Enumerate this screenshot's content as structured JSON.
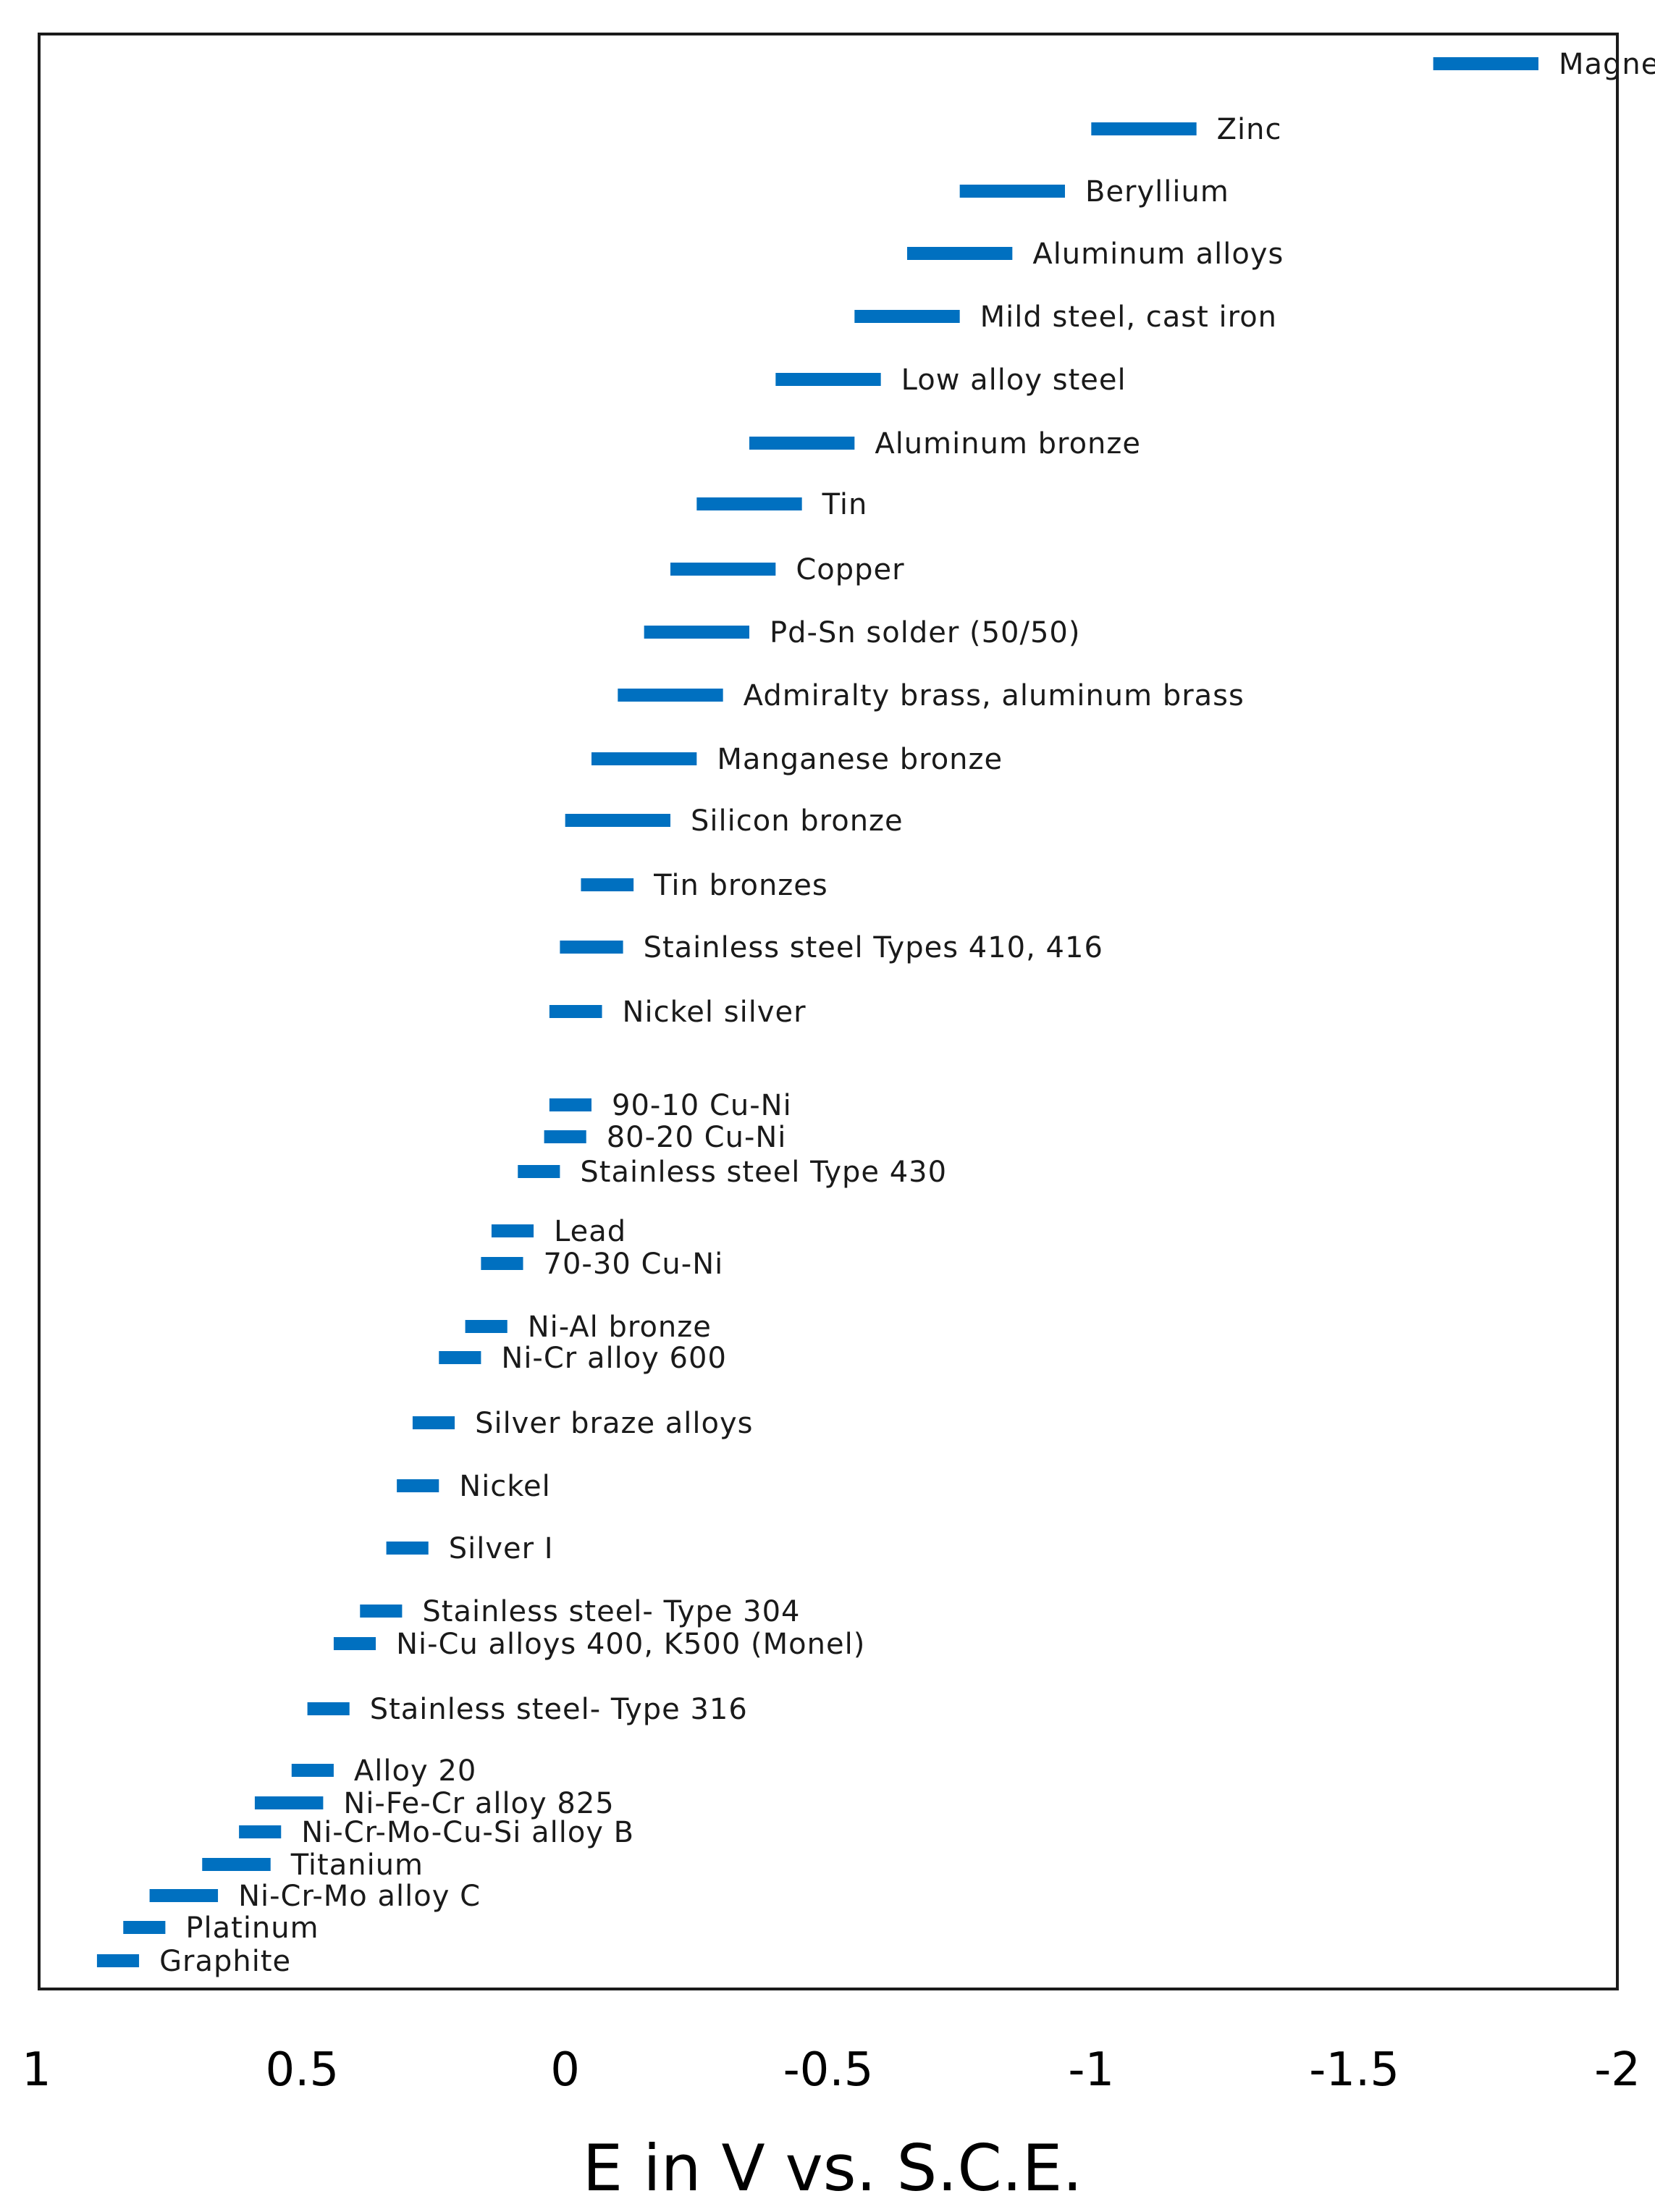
{
  "chart_data": {
    "type": "range-bar",
    "title": "",
    "xlabel": "E in V vs. S.C.E.",
    "ylabel": "",
    "xlim": [
      1,
      -2
    ],
    "x_reversed": true,
    "grid": false,
    "legend": "none",
    "bar_color": "#0070C0",
    "x_ticks": [
      1,
      0.5,
      0,
      -0.5,
      -1,
      -1.5,
      -2
    ],
    "x_tick_labels": [
      "1",
      "0.5",
      "0",
      "-0.5",
      "-1",
      "-1.5",
      "-2"
    ],
    "series": [
      {
        "label": "Magnesium",
        "range": [
          -1.65,
          -1.85
        ]
      },
      {
        "label": "Zinc",
        "range": [
          -1.0,
          -1.2
        ]
      },
      {
        "label": "Beryllium",
        "range": [
          -0.75,
          -0.95
        ]
      },
      {
        "label": "Aluminum alloys",
        "range": [
          -0.65,
          -0.85
        ]
      },
      {
        "label": "Mild steel, cast iron",
        "range": [
          -0.55,
          -0.75
        ]
      },
      {
        "label": "Low alloy steel",
        "range": [
          -0.4,
          -0.6
        ]
      },
      {
        "label": "Aluminum bronze",
        "range": [
          -0.35,
          -0.55
        ]
      },
      {
        "label": "Tin",
        "range": [
          -0.25,
          -0.45
        ]
      },
      {
        "label": "Copper",
        "range": [
          -0.2,
          -0.4
        ]
      },
      {
        "label": "Pd-Sn solder (50/50)",
        "range": [
          -0.15,
          -0.35
        ]
      },
      {
        "label": "Admiralty brass, aluminum brass",
        "range": [
          -0.1,
          -0.3
        ]
      },
      {
        "label": "Manganese bronze",
        "range": [
          -0.05,
          -0.25
        ]
      },
      {
        "label": "Silicon bronze",
        "range": [
          0.0,
          -0.2
        ]
      },
      {
        "label": "Tin bronzes",
        "range": [
          -0.03,
          -0.13
        ]
      },
      {
        "label": "Stainless steel Types 410, 416",
        "range": [
          0.01,
          -0.11
        ]
      },
      {
        "label": "Nickel silver",
        "range": [
          0.03,
          -0.07
        ]
      },
      {
        "label": "90-10 Cu-Ni",
        "range": [
          0.03,
          -0.05
        ]
      },
      {
        "label": "80-20 Cu-Ni",
        "range": [
          0.04,
          -0.04
        ]
      },
      {
        "label": "Stainless steel Type 430",
        "range": [
          0.09,
          0.01
        ]
      },
      {
        "label": "Lead",
        "range": [
          0.14,
          0.06
        ]
      },
      {
        "label": "70-30 Cu-Ni",
        "range": [
          0.16,
          0.08
        ]
      },
      {
        "label": "Ni-Al bronze",
        "range": [
          0.19,
          0.11
        ]
      },
      {
        "label": "Ni-Cr alloy 600",
        "range": [
          0.24,
          0.16
        ]
      },
      {
        "label": "Silver braze alloys",
        "range": [
          0.29,
          0.21
        ]
      },
      {
        "label": "Nickel",
        "range": [
          0.32,
          0.24
        ]
      },
      {
        "label": "Silver I",
        "range": [
          0.34,
          0.26
        ]
      },
      {
        "label": "Stainless steel- Type 304",
        "range": [
          0.39,
          0.31
        ]
      },
      {
        "label": "Ni-Cu alloys 400, K500 (Monel)",
        "range": [
          0.44,
          0.36
        ]
      },
      {
        "label": "Stainless steel- Type 316",
        "range": [
          0.49,
          0.41
        ]
      },
      {
        "label": "Alloy 20",
        "range": [
          0.52,
          0.44
        ]
      },
      {
        "label": "Ni-Fe-Cr alloy 825",
        "range": [
          0.59,
          0.46
        ]
      },
      {
        "label": "Ni-Cr-Mo-Cu-Si alloy B",
        "range": [
          0.62,
          0.54
        ]
      },
      {
        "label": "Titanium",
        "range": [
          0.69,
          0.56
        ]
      },
      {
        "label": "Ni-Cr-Mo alloy C",
        "range": [
          0.79,
          0.66
        ]
      },
      {
        "label": "Platinum",
        "range": [
          0.84,
          0.76
        ]
      },
      {
        "label": "Graphite",
        "range": [
          0.89,
          0.81
        ]
      }
    ]
  }
}
